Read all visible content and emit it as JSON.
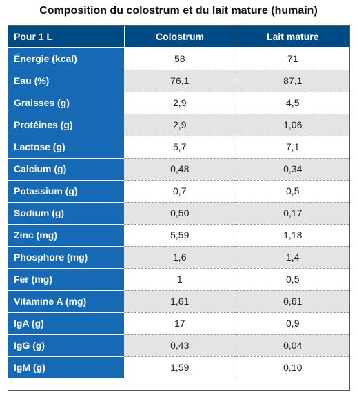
{
  "title": "Composition du colostrum et du lait mature (humain)",
  "table": {
    "headers": [
      "Pour 1 L",
      "Colostrum",
      "Lait mature"
    ],
    "rows": [
      {
        "label": "Énergie (kcal)",
        "colostrum": "58",
        "mature": "71"
      },
      {
        "label": "Eau (%)",
        "colostrum": "76,1",
        "mature": "87,1"
      },
      {
        "label": "Graisses (g)",
        "colostrum": "2,9",
        "mature": "4,5"
      },
      {
        "label": "Protéines (g)",
        "colostrum": "2,9",
        "mature": "1,06"
      },
      {
        "label": "Lactose (g)",
        "colostrum": "5,7",
        "mature": "7,1"
      },
      {
        "label": "Calcium (g)",
        "colostrum": "0,48",
        "mature": "0,34"
      },
      {
        "label": "Potassium (g)",
        "colostrum": "0,7",
        "mature": "0,5"
      },
      {
        "label": "Sodium (g)",
        "colostrum": "0,50",
        "mature": "0,17"
      },
      {
        "label": "Zinc (mg)",
        "colostrum": "5,59",
        "mature": "1,18"
      },
      {
        "label": "Phosphore (mg)",
        "colostrum": "1,6",
        "mature": "1,4"
      },
      {
        "label": "Fer (mg)",
        "colostrum": "1",
        "mature": "0,5"
      },
      {
        "label": "Vitamine A (mg)",
        "colostrum": "1,61",
        "mature": "0,61"
      },
      {
        "label": "IgA (g)",
        "colostrum": "17",
        "mature": "0,9"
      },
      {
        "label": "IgG (g)",
        "colostrum": "0,43",
        "mature": "0,04"
      },
      {
        "label": "IgM (g)",
        "colostrum": "1,59",
        "mature": "0,10"
      }
    ]
  },
  "colors": {
    "header_background": "#004a86",
    "row_label_background": "#1669b5",
    "stripe_background": "#e4e4e4"
  }
}
